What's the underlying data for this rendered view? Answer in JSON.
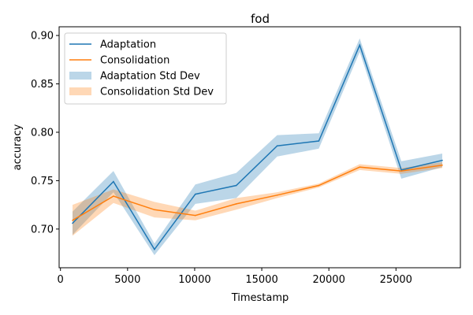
{
  "chart_data": {
    "type": "line",
    "title": "fod",
    "xlabel": "Timestamp",
    "ylabel": "accuracy",
    "xlim": [
      -100,
      29800
    ],
    "ylim": [
      0.66,
      0.909
    ],
    "x_ticks": [
      0,
      5000,
      10000,
      15000,
      20000,
      25000
    ],
    "y_ticks": [
      0.7,
      0.75,
      0.8,
      0.85,
      0.9
    ],
    "x_tick_labels": [
      "0",
      "5000",
      "10000",
      "15000",
      "20000",
      "25000"
    ],
    "y_tick_labels": [
      "0.70",
      "0.75",
      "0.80",
      "0.85",
      "0.90"
    ],
    "x": [
      900,
      3950,
      7000,
      10050,
      13100,
      16150,
      19250,
      22300,
      25400,
      28450
    ],
    "series": [
      {
        "name": "Adaptation",
        "color": "#1f77b4",
        "values": [
          0.706,
          0.749,
          0.679,
          0.736,
          0.745,
          0.786,
          0.791,
          0.89,
          0.761,
          0.771
        ],
        "std_name": "Adaptation Std Dev",
        "std": [
          0.012,
          0.011,
          0.006,
          0.01,
          0.013,
          0.011,
          0.008,
          0.007,
          0.009,
          0.007
        ],
        "band_color": "#1f77b4"
      },
      {
        "name": "Consolidation",
        "color": "#ff7f0e",
        "values": [
          0.709,
          0.734,
          0.72,
          0.714,
          0.726,
          0.735,
          0.745,
          0.764,
          0.76,
          0.766
        ],
        "std_name": "Consolidation Std Dev",
        "std": [
          0.016,
          0.007,
          0.008,
          0.005,
          0.006,
          0.003,
          0.002,
          0.003,
          0.003,
          0.003
        ],
        "band_color": "#ff7f0e"
      }
    ],
    "legend_position": "upper-left",
    "grid": false
  }
}
